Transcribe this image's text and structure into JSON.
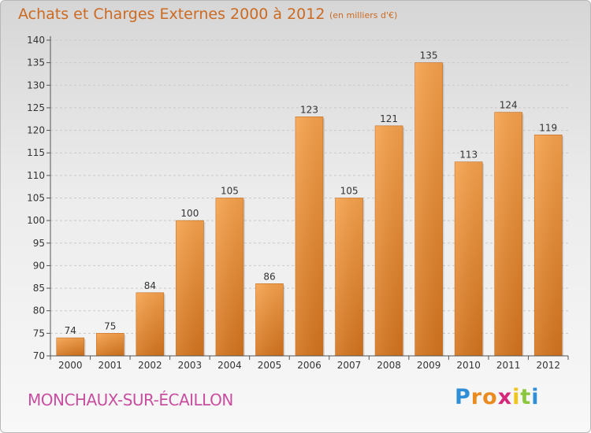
{
  "chart_data": {
    "type": "bar",
    "title": "Achats et Charges Externes 2000 à 2012",
    "subtitle": "(en milliers d'€)",
    "categories": [
      "2000",
      "2001",
      "2002",
      "2003",
      "2004",
      "2005",
      "2006",
      "2007",
      "2008",
      "2009",
      "2010",
      "2011",
      "2012"
    ],
    "values": [
      74,
      75,
      84,
      100,
      105,
      86,
      123,
      105,
      121,
      135,
      113,
      124,
      119
    ],
    "ylim": [
      70,
      140
    ],
    "yticks": [
      70,
      75,
      80,
      85,
      90,
      95,
      100,
      105,
      110,
      115,
      120,
      125,
      130,
      135,
      140
    ],
    "grid": true,
    "bar_color": "#f0913a",
    "xlabel": "",
    "ylabel": ""
  },
  "location": "MONCHAUX-SUR-ÉCAILLON",
  "logo": {
    "letters": [
      "P",
      "r",
      "o",
      "x",
      "i",
      "t",
      "i"
    ],
    "colors": [
      "#2f8fd6",
      "#e98b1f",
      "#e98b1f",
      "#d6287a",
      "#f0c419",
      "#8cc63f",
      "#2f8fd6"
    ]
  }
}
